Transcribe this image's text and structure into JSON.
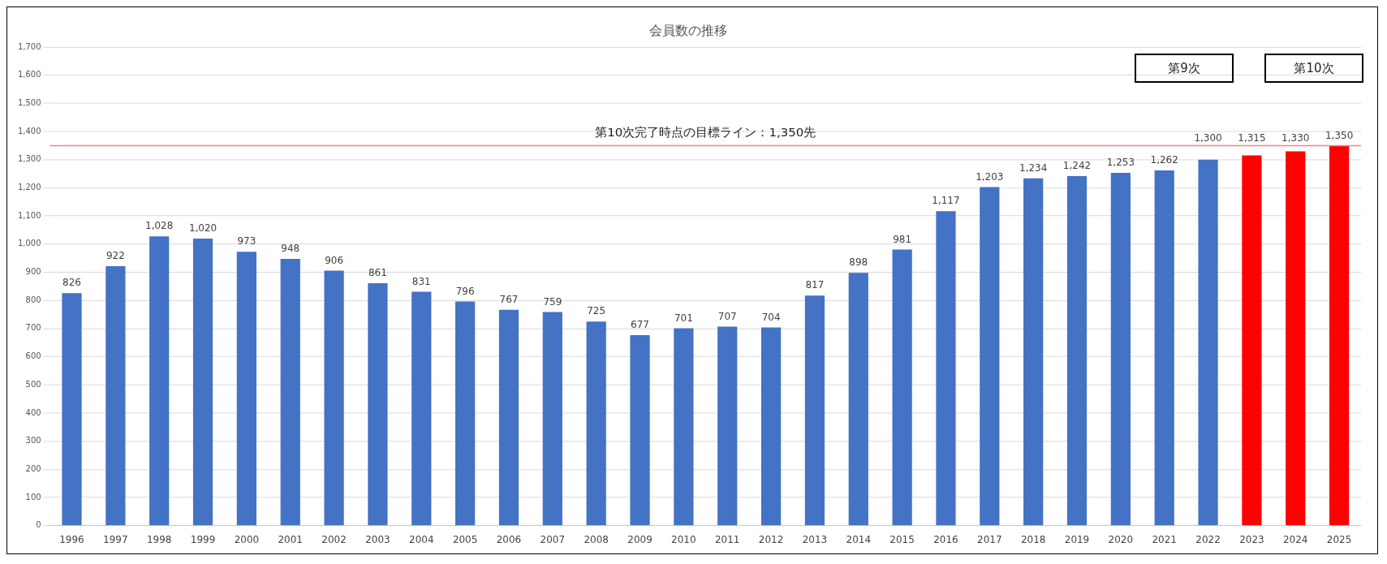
{
  "chart_data": {
    "type": "bar",
    "title": "会員数の推移",
    "categories": [
      "1996",
      "1997",
      "1998",
      "1999",
      "2000",
      "2001",
      "2002",
      "2003",
      "2004",
      "2005",
      "2006",
      "2007",
      "2008",
      "2009",
      "2010",
      "2011",
      "2012",
      "2013",
      "2014",
      "2015",
      "2016",
      "2017",
      "2018",
      "2019",
      "2020",
      "2021",
      "2022",
      "2023",
      "2024",
      "2025"
    ],
    "values": [
      826,
      922,
      1028,
      1020,
      973,
      948,
      906,
      861,
      831,
      796,
      767,
      759,
      725,
      677,
      701,
      707,
      704,
      817,
      898,
      981,
      1117,
      1203,
      1234,
      1242,
      1253,
      1262,
      1300,
      1315,
      1330,
      1350
    ],
    "value_labels": [
      "826",
      "922",
      "1,028",
      "1,020",
      "973",
      "948",
      "906",
      "861",
      "831",
      "796",
      "767",
      "759",
      "725",
      "677",
      "701",
      "707",
      "704",
      "817",
      "898",
      "981",
      "1,117",
      "1,203",
      "1,234",
      "1,242",
      "1,253",
      "1,262",
      "1,300",
      "1,315",
      "1,330",
      "1,350"
    ],
    "colors": [
      "#4472c4",
      "#4472c4",
      "#4472c4",
      "#4472c4",
      "#4472c4",
      "#4472c4",
      "#4472c4",
      "#4472c4",
      "#4472c4",
      "#4472c4",
      "#4472c4",
      "#4472c4",
      "#4472c4",
      "#4472c4",
      "#4472c4",
      "#4472c4",
      "#4472c4",
      "#4472c4",
      "#4472c4",
      "#4472c4",
      "#4472c4",
      "#4472c4",
      "#4472c4",
      "#4472c4",
      "#4472c4",
      "#4472c4",
      "#4472c4",
      "#ff0000",
      "#ff0000",
      "#ff0000"
    ],
    "ylim": [
      0,
      1700
    ],
    "yticks": [
      0,
      100,
      200,
      300,
      400,
      500,
      600,
      700,
      800,
      900,
      {
        "value": 1000,
        "label": "1,000"
      },
      {
        "value": 1100,
        "label": "1,100"
      },
      {
        "value": 1200,
        "label": "1,200"
      },
      {
        "value": 1300,
        "label": "1,300"
      },
      {
        "value": 1400,
        "label": "1,400"
      },
      {
        "value": 1500,
        "label": "1,500"
      },
      {
        "value": 1600,
        "label": "1,600"
      },
      {
        "value": 1700,
        "label": "1,700"
      }
    ],
    "grid": "y",
    "legend": false,
    "ref_lines": [
      {
        "axis": "y",
        "value": 1350,
        "label": "第10次完了時点の目標ライン：1,350先",
        "color": "#ff7f7f"
      }
    ],
    "annotations": [
      "第9次",
      "第10次"
    ]
  }
}
